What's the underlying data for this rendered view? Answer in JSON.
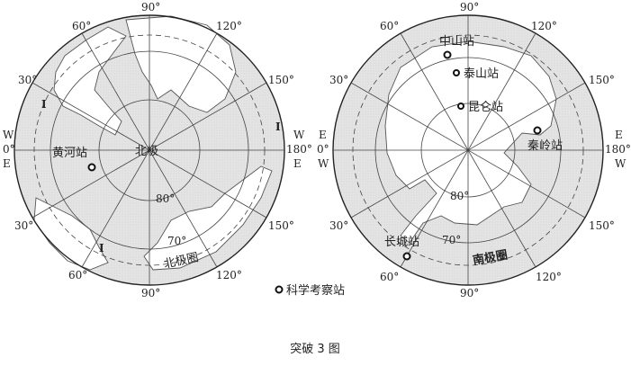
{
  "north_map": {
    "pole_label": "北极",
    "station": {
      "name": "黄河站",
      "icon": "circle-station-icon"
    },
    "meridian_labels": {
      "top": "90°",
      "upper_left_60": "60°",
      "upper_right_120": "120°",
      "left_30_upper": "30°",
      "right_150_upper": "150°",
      "left_30_lower": "30°",
      "right_150_lower": "150°",
      "lower_left_60": "60°",
      "lower_right_120": "120°",
      "bottom": "90°"
    },
    "left_side": {
      "w": "W",
      "deg": "0°",
      "e": "E"
    },
    "right_side": {
      "w": "W",
      "deg": "180°",
      "e": "E"
    },
    "lat_80": "80°",
    "lat_70": "70°",
    "circle_label": "北极圈",
    "marker_label": "I"
  },
  "south_map": {
    "stations": [
      {
        "name": "中山站"
      },
      {
        "name": "泰山站"
      },
      {
        "name": "昆仑站"
      },
      {
        "name": "秦岭站"
      },
      {
        "name": "长城站"
      }
    ],
    "meridian_labels": {
      "top": "90°",
      "upper_left_60": "60°",
      "upper_right_120": "120°",
      "left_30_upper": "30°",
      "right_150_upper": "150°",
      "left_30_lower": "30°",
      "right_150_lower": "150°",
      "lower_left_60": "60°",
      "lower_right_120": "120°",
      "bottom": "90°"
    },
    "left_side": {
      "e": "E",
      "deg": "0°",
      "w": "W"
    },
    "right_side": {
      "e": "E",
      "deg": "180°",
      "w": "W"
    },
    "lat_80": "80°",
    "lat_70": "70°",
    "circle_label": "南极圈"
  },
  "legend": {
    "label": "科学考察站",
    "icon": "circle-station-icon"
  },
  "caption": "突破 3 图",
  "colors": {
    "ocean_shade": "#e6e6e6",
    "land": "#ffffff",
    "line": "#444444"
  }
}
